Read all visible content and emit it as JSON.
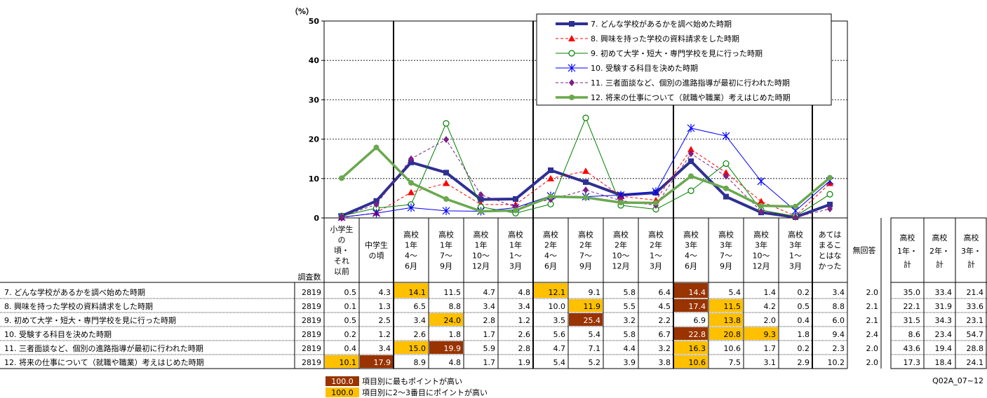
{
  "chart_data": {
    "type": "line",
    "yunit": "（%）",
    "ylim": [
      0,
      50
    ],
    "yticks": [
      0,
      10,
      20,
      30,
      40,
      50
    ],
    "grid": "dashed-horizontal",
    "legend_position": "top-right",
    "col_header_n": "調査数",
    "categories": [
      "小学生の頃・それ以前",
      "中学生の頃",
      "高校1年4～6月",
      "高校1年7～9月",
      "高校1年10～12月",
      "高校1年1～3月",
      "高校2年4～6月",
      "高校2年7～9月",
      "高校2年10～12月",
      "高校2年1～3月",
      "高校3年4～6月",
      "高校3年7～9月",
      "高校3年10～12月",
      "高校3年1～3月",
      "あてはまることはなかった",
      "無回答"
    ],
    "category_lines": [
      [
        "小学生",
        "の",
        "頃・",
        "それ",
        "以前"
      ],
      [
        "中学生",
        "の頃"
      ],
      [
        "高校",
        "1年",
        "4～",
        "6月"
      ],
      [
        "高校",
        "1年",
        "7～",
        "9月"
      ],
      [
        "高校",
        "1年",
        "10～",
        "12月"
      ],
      [
        "高校",
        "1年",
        "1～",
        "3月"
      ],
      [
        "高校",
        "2年",
        "4～",
        "6月"
      ],
      [
        "高校",
        "2年",
        "7～",
        "9月"
      ],
      [
        "高校",
        "2年",
        "10～",
        "12月"
      ],
      [
        "高校",
        "2年",
        "1～",
        "3月"
      ],
      [
        "高校",
        "3年",
        "4～",
        "6月"
      ],
      [
        "高校",
        "3年",
        "7～",
        "9月"
      ],
      [
        "高校",
        "3年",
        "10～",
        "12月"
      ],
      [
        "高校",
        "3年",
        "1～",
        "3月"
      ],
      [
        "あては",
        "まるこ",
        "とはな",
        "かった"
      ],
      [
        "無回答"
      ]
    ],
    "totals_headers": [
      [
        "高校",
        "1年・",
        "計"
      ],
      [
        "高校",
        "2年・",
        "計"
      ],
      [
        "高校",
        "3年・",
        "計"
      ]
    ],
    "series": [
      {
        "name": "7. どんな学校があるかを調べ始めた時期",
        "n": "2819",
        "values": [
          "0.5",
          "4.3",
          "14.1",
          "11.5",
          "4.7",
          "4.8",
          "12.1",
          "9.1",
          "5.8",
          "6.4",
          "14.4",
          "5.4",
          "1.4",
          "0.2",
          "3.4",
          "2.0"
        ],
        "totals": [
          "35.0",
          "33.4",
          "21.4"
        ],
        "color": "#2E3092",
        "marker": "square",
        "dash": "",
        "width": 4,
        "highlights": {
          "10": "top",
          "2": "second",
          "6": "second"
        }
      },
      {
        "name": "8. 興味を持った学校の資料請求をした時期",
        "n": "2819",
        "values": [
          "0.1",
          "1.3",
          "6.5",
          "8.8",
          "3.4",
          "3.4",
          "10.0",
          "11.9",
          "5.5",
          "4.5",
          "17.4",
          "11.5",
          "4.2",
          "0.5",
          "8.8",
          "2.1"
        ],
        "totals": [
          "22.1",
          "31.9",
          "33.6"
        ],
        "color": "#FF0000",
        "marker": "triangle",
        "dash": "4,3",
        "width": 1,
        "highlights": {
          "10": "top",
          "7": "second",
          "11": "second"
        }
      },
      {
        "name": "9. 初めて大学・短大・専門学校を見に行った時期",
        "n": "2819",
        "values": [
          "0.5",
          "2.5",
          "3.4",
          "24.0",
          "2.8",
          "1.2",
          "3.5",
          "25.4",
          "3.2",
          "2.2",
          "6.9",
          "13.8",
          "2.0",
          "0.4",
          "6.0",
          "2.1"
        ],
        "totals": [
          "31.5",
          "34.3",
          "23.1"
        ],
        "color": "#008000",
        "marker": "circle-open",
        "dash": "",
        "width": 1,
        "highlights": {
          "7": "top",
          "3": "second",
          "11": "second"
        }
      },
      {
        "name": "10. 受験する科目を決めた時期",
        "n": "2819",
        "values": [
          "0.2",
          "1.2",
          "2.6",
          "1.8",
          "1.7",
          "2.6",
          "5.6",
          "5.4",
          "5.8",
          "6.7",
          "22.8",
          "20.8",
          "9.3",
          "1.8",
          "9.4",
          "2.4"
        ],
        "totals": [
          "8.6",
          "23.4",
          "54.7"
        ],
        "color": "#0000FF",
        "marker": "star",
        "dash": "",
        "width": 1,
        "highlights": {
          "10": "top",
          "11": "second",
          "12": "second"
        }
      },
      {
        "name": "11. 三者面談など、個別の進路指導が最初に行われた時期",
        "n": "2819",
        "values": [
          "0.4",
          "3.4",
          "15.0",
          "19.9",
          "5.9",
          "2.8",
          "4.7",
          "7.1",
          "4.4",
          "3.2",
          "16.3",
          "10.6",
          "1.7",
          "0.2",
          "2.3",
          "2.0"
        ],
        "totals": [
          "43.6",
          "19.4",
          "28.8"
        ],
        "color": "#7B1F87",
        "marker": "diamond",
        "dash": "4,3",
        "width": 1,
        "highlights": {
          "3": "top",
          "2": "second",
          "10": "second"
        }
      },
      {
        "name": "12. 将来の仕事について（就職や職業）考えはじめた時期",
        "n": "2819",
        "values": [
          "10.1",
          "17.9",
          "8.9",
          "4.8",
          "1.7",
          "1.9",
          "5.4",
          "5.2",
          "3.9",
          "3.8",
          "10.6",
          "7.5",
          "3.1",
          "2.9",
          "10.2",
          "2.0"
        ],
        "totals": [
          "17.3",
          "18.4",
          "24.1"
        ],
        "color": "#6AA84F",
        "marker": "circle",
        "dash": "",
        "width": 3.5,
        "highlights": {
          "1": "top",
          "0": "second",
          "10": "second"
        }
      }
    ],
    "highlight_legend": [
      {
        "sample": "100.0",
        "text": "項目別に最もポイントが高い",
        "fill": "#993300",
        "textcolor": "#ffffff"
      },
      {
        "sample": "100.0",
        "text": "項目別に2～3番目にポイントが高い",
        "fill": "#FFC000",
        "textcolor": "#000000"
      }
    ],
    "footnote": "Q02A_07~12"
  }
}
